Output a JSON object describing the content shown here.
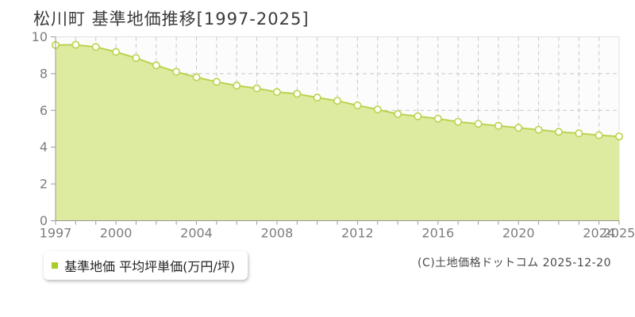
{
  "title": "松川町 基準地価推移[1997-2025]",
  "legend": {
    "label": "基準地価 平均坪単価(万円/坪)",
    "marker_color": "#a9cc29"
  },
  "footer": {
    "copyright": "(C)土地価格ドットコム 2025-12-20"
  },
  "colors": {
    "line": "#b9d34f",
    "fill": "#ddeba1",
    "marker_fill": "#fefef4",
    "grid": "#c8c8c8",
    "axis": "#999999",
    "tick_label": "#7d7d7d",
    "plot_bg": "#fcfcfc",
    "plot_border": "#e2e2e2"
  },
  "chart_data": {
    "type": "area",
    "title": "松川町 基準地価推移[1997-2025]",
    "xlabel": "",
    "ylabel": "基準地価 平均坪単価(万円/坪)",
    "x": [
      1997,
      1998,
      1999,
      2000,
      2001,
      2002,
      2003,
      2004,
      2005,
      2006,
      2007,
      2008,
      2009,
      2010,
      2011,
      2012,
      2013,
      2014,
      2015,
      2016,
      2017,
      2018,
      2019,
      2020,
      2021,
      2022,
      2023,
      2024,
      2025
    ],
    "series": [
      {
        "name": "基準地価 平均坪単価(万円/坪)",
        "values": [
          9.55,
          9.57,
          9.45,
          9.18,
          8.85,
          8.45,
          8.1,
          7.8,
          7.55,
          7.35,
          7.2,
          7.0,
          6.9,
          6.7,
          6.52,
          6.27,
          6.05,
          5.8,
          5.68,
          5.55,
          5.38,
          5.27,
          5.16,
          5.05,
          4.95,
          4.83,
          4.75,
          4.65,
          4.58
        ]
      }
    ],
    "ylim": [
      0,
      10
    ],
    "yticks": [
      0,
      2,
      4,
      6,
      8,
      10
    ],
    "xtick_labeled_years": [
      1997,
      2000,
      2004,
      2008,
      2012,
      2016,
      2020,
      2024,
      2025
    ],
    "grid": true,
    "legend_position": "bottom-left"
  }
}
